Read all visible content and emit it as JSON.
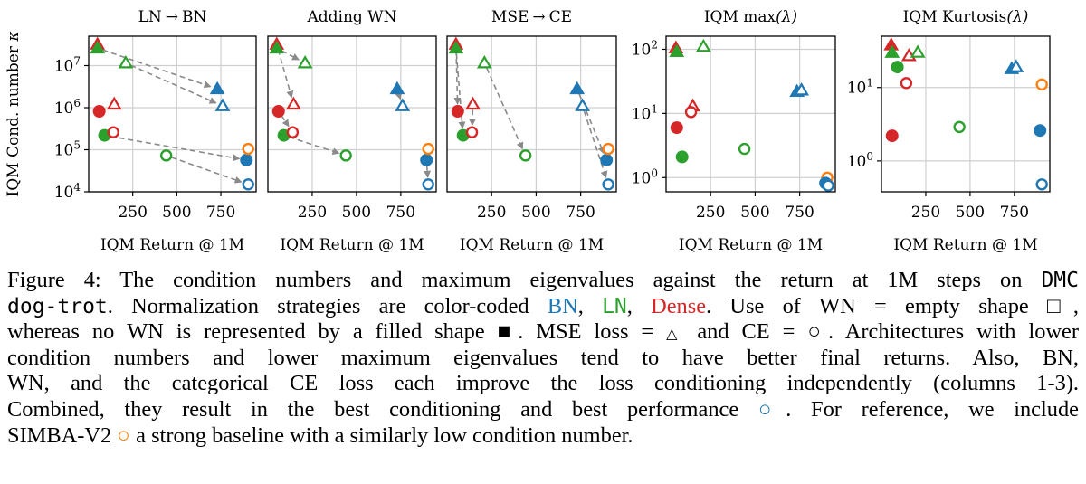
{
  "chart_data": {
    "type": "scatter",
    "xlabel": "IQM Return @ 1M",
    "xticks": [
      "250",
      "500",
      "750"
    ],
    "xlim": [
      0,
      950
    ],
    "legend": {
      "colors": {
        "BN": "#1f77b4",
        "LN": "#2ca02c",
        "Dense": "#d62728",
        "SimbaV2": "#ff7f0e"
      },
      "markers": {
        "MSE": "triangle",
        "CE": "circle"
      },
      "fill": {
        "no_WN": "filled",
        "WN": "empty"
      }
    },
    "panels": [
      {
        "title_parts": [
          "LN",
          "→",
          "BN"
        ],
        "ylabel_parts": [
          "IQM Cond. number ",
          "κ"
        ],
        "yscale": "log",
        "ylim": [
          10000,
          50000000
        ],
        "yticks": [
          {
            "v": 10000,
            "b": "10",
            "e": "4"
          },
          {
            "v": 100000,
            "b": "10",
            "e": "5"
          },
          {
            "v": 1000000,
            "b": "10",
            "e": "6"
          },
          {
            "v": 10000000,
            "b": "10",
            "e": "7"
          }
        ],
        "points": [
          {
            "x": 50,
            "y": 32000000,
            "color": "#d62728",
            "marker": "triangle",
            "filled": true
          },
          {
            "x": 50,
            "y": 26000000,
            "color": "#2ca02c",
            "marker": "triangle",
            "filled": true
          },
          {
            "x": 210,
            "y": 11500000,
            "color": "#2ca02c",
            "marker": "triangle",
            "filled": false
          },
          {
            "x": 145,
            "y": 1200000,
            "color": "#d62728",
            "marker": "triangle",
            "filled": false
          },
          {
            "x": 60,
            "y": 820000,
            "color": "#d62728",
            "marker": "circle",
            "filled": true
          },
          {
            "x": 90,
            "y": 220000,
            "color": "#2ca02c",
            "marker": "circle",
            "filled": true
          },
          {
            "x": 140,
            "y": 260000,
            "color": "#d62728",
            "marker": "circle",
            "filled": false
          },
          {
            "x": 440,
            "y": 73000,
            "color": "#2ca02c",
            "marker": "circle",
            "filled": false
          },
          {
            "x": 730,
            "y": 2800000,
            "color": "#1f77b4",
            "marker": "triangle",
            "filled": true
          },
          {
            "x": 760,
            "y": 1100000,
            "color": "#1f77b4",
            "marker": "triangle",
            "filled": false
          },
          {
            "x": 895,
            "y": 57000,
            "color": "#1f77b4",
            "marker": "circle",
            "filled": true
          },
          {
            "x": 905,
            "y": 15000,
            "color": "#1f77b4",
            "marker": "circle",
            "filled": false
          },
          {
            "x": 905,
            "y": 105000,
            "color": "#ff7f0e",
            "marker": "circle",
            "filled": false
          }
        ],
        "arrows": [
          {
            "from": [
              50,
              26000000
            ],
            "to": [
              730,
              2800000
            ]
          },
          {
            "from": [
              210,
              11500000
            ],
            "to": [
              760,
              1100000
            ]
          },
          {
            "from": [
              90,
              220000
            ],
            "to": [
              895,
              57000
            ]
          },
          {
            "from": [
              440,
              73000
            ],
            "to": [
              905,
              15000
            ]
          }
        ]
      },
      {
        "title_parts": [
          "Adding WN"
        ],
        "yscale": "log",
        "ylim": [
          10000,
          50000000
        ],
        "points": [
          {
            "x": 50,
            "y": 32000000,
            "color": "#d62728",
            "marker": "triangle",
            "filled": true
          },
          {
            "x": 50,
            "y": 26000000,
            "color": "#2ca02c",
            "marker": "triangle",
            "filled": true
          },
          {
            "x": 210,
            "y": 11500000,
            "color": "#2ca02c",
            "marker": "triangle",
            "filled": false
          },
          {
            "x": 145,
            "y": 1200000,
            "color": "#d62728",
            "marker": "triangle",
            "filled": false
          },
          {
            "x": 60,
            "y": 820000,
            "color": "#d62728",
            "marker": "circle",
            "filled": true
          },
          {
            "x": 90,
            "y": 220000,
            "color": "#2ca02c",
            "marker": "circle",
            "filled": true
          },
          {
            "x": 140,
            "y": 260000,
            "color": "#d62728",
            "marker": "circle",
            "filled": false
          },
          {
            "x": 440,
            "y": 73000,
            "color": "#2ca02c",
            "marker": "circle",
            "filled": false
          },
          {
            "x": 730,
            "y": 2800000,
            "color": "#1f77b4",
            "marker": "triangle",
            "filled": true
          },
          {
            "x": 760,
            "y": 1100000,
            "color": "#1f77b4",
            "marker": "triangle",
            "filled": false
          },
          {
            "x": 895,
            "y": 57000,
            "color": "#1f77b4",
            "marker": "circle",
            "filled": true
          },
          {
            "x": 905,
            "y": 15000,
            "color": "#1f77b4",
            "marker": "circle",
            "filled": false
          },
          {
            "x": 905,
            "y": 105000,
            "color": "#ff7f0e",
            "marker": "circle",
            "filled": false
          }
        ],
        "arrows": [
          {
            "from": [
              50,
              32000000
            ],
            "to": [
              145,
              1200000
            ]
          },
          {
            "from": [
              50,
              26000000
            ],
            "to": [
              210,
              11500000
            ]
          },
          {
            "from": [
              60,
              820000
            ],
            "to": [
              140,
              260000
            ]
          },
          {
            "from": [
              90,
              220000
            ],
            "to": [
              440,
              73000
            ]
          },
          {
            "from": [
              895,
              57000
            ],
            "to": [
              905,
              15000
            ]
          },
          {
            "from": [
              730,
              2800000
            ],
            "to": [
              760,
              1100000
            ]
          }
        ]
      },
      {
        "title_parts": [
          "MSE",
          "→",
          "CE"
        ],
        "yscale": "log",
        "ylim": [
          10000,
          50000000
        ],
        "points": [
          {
            "x": 50,
            "y": 32000000,
            "color": "#d62728",
            "marker": "triangle",
            "filled": true
          },
          {
            "x": 50,
            "y": 26000000,
            "color": "#2ca02c",
            "marker": "triangle",
            "filled": true
          },
          {
            "x": 210,
            "y": 11500000,
            "color": "#2ca02c",
            "marker": "triangle",
            "filled": false
          },
          {
            "x": 145,
            "y": 1200000,
            "color": "#d62728",
            "marker": "triangle",
            "filled": false
          },
          {
            "x": 60,
            "y": 820000,
            "color": "#d62728",
            "marker": "circle",
            "filled": true
          },
          {
            "x": 90,
            "y": 220000,
            "color": "#2ca02c",
            "marker": "circle",
            "filled": true
          },
          {
            "x": 140,
            "y": 260000,
            "color": "#d62728",
            "marker": "circle",
            "filled": false
          },
          {
            "x": 440,
            "y": 73000,
            "color": "#2ca02c",
            "marker": "circle",
            "filled": false
          },
          {
            "x": 730,
            "y": 2800000,
            "color": "#1f77b4",
            "marker": "triangle",
            "filled": true
          },
          {
            "x": 760,
            "y": 1100000,
            "color": "#1f77b4",
            "marker": "triangle",
            "filled": false
          },
          {
            "x": 895,
            "y": 57000,
            "color": "#1f77b4",
            "marker": "circle",
            "filled": true
          },
          {
            "x": 905,
            "y": 15000,
            "color": "#1f77b4",
            "marker": "circle",
            "filled": false
          },
          {
            "x": 905,
            "y": 105000,
            "color": "#ff7f0e",
            "marker": "circle",
            "filled": false
          }
        ],
        "arrows": [
          {
            "from": [
              50,
              32000000
            ],
            "to": [
              60,
              820000
            ]
          },
          {
            "from": [
              50,
              26000000
            ],
            "to": [
              90,
              220000
            ]
          },
          {
            "from": [
              145,
              1200000
            ],
            "to": [
              140,
              260000
            ]
          },
          {
            "from": [
              210,
              11500000
            ],
            "to": [
              440,
              73000
            ]
          },
          {
            "from": [
              730,
              2800000
            ],
            "to": [
              895,
              57000
            ]
          },
          {
            "from": [
              760,
              1100000
            ],
            "to": [
              905,
              15000
            ]
          }
        ]
      },
      {
        "title_parts": [
          "IQM ",
          "max",
          "(λ)"
        ],
        "yscale": "log",
        "ylim": [
          0.6,
          160
        ],
        "yticks": [
          {
            "v": 1,
            "b": "10",
            "e": "0"
          },
          {
            "v": 10,
            "b": "10",
            "e": "1"
          },
          {
            "v": 100,
            "b": "10",
            "e": "2"
          }
        ],
        "points": [
          {
            "x": 55,
            "y": 105,
            "color": "#d62728",
            "marker": "triangle",
            "filled": true
          },
          {
            "x": 60,
            "y": 92,
            "color": "#2ca02c",
            "marker": "triangle",
            "filled": true
          },
          {
            "x": 210,
            "y": 110,
            "color": "#2ca02c",
            "marker": "triangle",
            "filled": false
          },
          {
            "x": 150,
            "y": 13,
            "color": "#d62728",
            "marker": "triangle",
            "filled": false
          },
          {
            "x": 140,
            "y": 10.5,
            "color": "#d62728",
            "marker": "circle",
            "filled": false
          },
          {
            "x": 60,
            "y": 6,
            "color": "#d62728",
            "marker": "circle",
            "filled": true
          },
          {
            "x": 90,
            "y": 2.1,
            "color": "#2ca02c",
            "marker": "circle",
            "filled": true
          },
          {
            "x": 440,
            "y": 2.8,
            "color": "#2ca02c",
            "marker": "circle",
            "filled": false
          },
          {
            "x": 735,
            "y": 22,
            "color": "#1f77b4",
            "marker": "triangle",
            "filled": true
          },
          {
            "x": 760,
            "y": 23,
            "color": "#1f77b4",
            "marker": "triangle",
            "filled": false
          },
          {
            "x": 905,
            "y": 1.0,
            "color": "#ff7f0e",
            "marker": "circle",
            "filled": false
          },
          {
            "x": 895,
            "y": 0.82,
            "color": "#1f77b4",
            "marker": "circle",
            "filled": true
          },
          {
            "x": 910,
            "y": 0.75,
            "color": "#1f77b4",
            "marker": "circle",
            "filled": false
          }
        ]
      },
      {
        "title_parts": [
          "IQM Kurtosis",
          "(λ)"
        ],
        "yscale": "log",
        "ylim": [
          0.38,
          50
        ],
        "yticks": [
          {
            "v": 1,
            "b": "10",
            "e": "0"
          },
          {
            "v": 10,
            "b": "10",
            "e": "1"
          }
        ],
        "points": [
          {
            "x": 55,
            "y": 38,
            "color": "#d62728",
            "marker": "triangle",
            "filled": true
          },
          {
            "x": 60,
            "y": 30,
            "color": "#2ca02c",
            "marker": "triangle",
            "filled": true
          },
          {
            "x": 155,
            "y": 27,
            "color": "#d62728",
            "marker": "triangle",
            "filled": false
          },
          {
            "x": 205,
            "y": 30,
            "color": "#2ca02c",
            "marker": "triangle",
            "filled": false
          },
          {
            "x": 90,
            "y": 19,
            "color": "#2ca02c",
            "marker": "circle",
            "filled": true
          },
          {
            "x": 140,
            "y": 11.5,
            "color": "#d62728",
            "marker": "circle",
            "filled": false
          },
          {
            "x": 60,
            "y": 2.2,
            "color": "#d62728",
            "marker": "circle",
            "filled": true
          },
          {
            "x": 440,
            "y": 2.9,
            "color": "#2ca02c",
            "marker": "circle",
            "filled": false
          },
          {
            "x": 735,
            "y": 18,
            "color": "#1f77b4",
            "marker": "triangle",
            "filled": true
          },
          {
            "x": 760,
            "y": 19,
            "color": "#1f77b4",
            "marker": "triangle",
            "filled": false
          },
          {
            "x": 905,
            "y": 11,
            "color": "#ff7f0e",
            "marker": "circle",
            "filled": false
          },
          {
            "x": 895,
            "y": 2.6,
            "color": "#1f77b4",
            "marker": "circle",
            "filled": true
          },
          {
            "x": 905,
            "y": 0.48,
            "color": "#1f77b4",
            "marker": "circle",
            "filled": false
          }
        ]
      }
    ]
  },
  "caption": {
    "l1a": "Figure 4:  The condition numbers and maximum eigenvalues against the return at 1M steps on ",
    "l1b": "DMC",
    "l2a": "dog-trot",
    "l2b": ". Normalization strategies are color-coded ",
    "l2c": "BN",
    "l2d": ", ",
    "l2e": "LN",
    "l2f": ", ",
    "l2g": "Dense",
    "l2h": ". Use of ",
    "l2i": "WN",
    "l2j": " = empty shape ",
    "l2k": "□",
    "l2l": ",",
    "l3a": "whereas no ",
    "l3b": "WN",
    "l3c": " is represented by a filled shape ",
    "l3d": "■",
    "l3e": ". ",
    "l3f": "MSE",
    "l3g": " loss = ",
    "l3h": "△",
    "l3i": " and ",
    "l3j": "CE",
    "l3k": " = ",
    "l3l": "○",
    "l3m": ". Architectures with lower",
    "l4": "condition numbers and lower maximum eigenvalues tend to have better final returns.  Also, ",
    "l4b": "BN",
    "l4c": ",",
    "l5a": "WN",
    "l5b": ", and the categorical ",
    "l5c": "CE",
    "l5d": " loss each improve the loss conditioning independently (columns 1-3).",
    "l6a": "Combined, they result in the best conditioning and best performance ",
    "l6b": "○",
    "l6c": ". For reference, we include",
    "l7a": "SIMBA-V2",
    "l7b": " ○",
    "l7c": " a strong baseline with a similarly low condition number."
  },
  "colors": {
    "blue": "#1f77b4",
    "green": "#2ca02c",
    "red": "#d62728",
    "orange": "#ff7f0e",
    "grid": "#cfcfcf",
    "arrow": "#8a8a8a"
  }
}
